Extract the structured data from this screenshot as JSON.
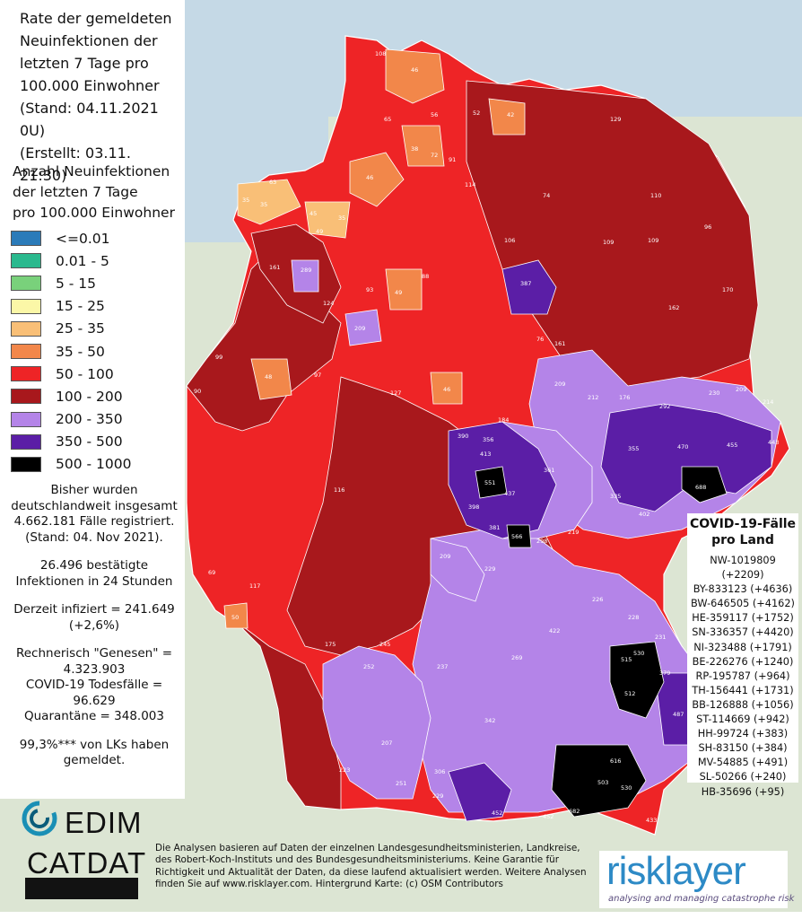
{
  "title_lines": [
    "Rate der gemeldeten",
    "Neuinfektionen der",
    "letzten 7 Tage pro",
    "100.000 Einwohner",
    "(Stand: 04.11.2021 0U)",
    "(Erstellt: 03.11. 21:30)"
  ],
  "legend_title_lines": [
    "Anzahl Neuinfektionen",
    "der letzten 7 Tage",
    "pro 100.000 Einwohner"
  ],
  "legend": [
    {
      "label": "<=0.01",
      "color": "#2b7bb9"
    },
    {
      "label": "0.01 - 5",
      "color": "#2ab98e"
    },
    {
      "label": "5 - 15",
      "color": "#79d17b"
    },
    {
      "label": "15 - 25",
      "color": "#fbf7a7"
    },
    {
      "label": "25 - 35",
      "color": "#f9bf77"
    },
    {
      "label": "35 - 50",
      "color": "#f2874a"
    },
    {
      "label": "50 - 100",
      "color": "#ee2426"
    },
    {
      "label": "100 - 200",
      "color": "#a8181c"
    },
    {
      "label": "200 - 350",
      "color": "#b484e8"
    },
    {
      "label": "350 - 500",
      "color": "#5b1ea6"
    },
    {
      "label": "500 - 1000",
      "color": "#000000"
    }
  ],
  "stats": {
    "total": "Bisher wurden deutschlandweit insgesamt 4.662.181 Fälle registriert. (Stand: 04. Nov 2021).",
    "new24h": "26.496 bestätigte Infektionen in 24 Stunden",
    "active": "Derzeit infiziert = 241.649 (+2,6%)",
    "recovered": "Rechnerisch \"Genesen\" = 4.323.903",
    "deaths": "COVID-19 Todesfälle = 96.629",
    "quarantine": "Quarantäne = 348.003",
    "reported": "99,3%*** von LKs haben gemeldet."
  },
  "laender_title": "COVID-19-Fälle pro Land",
  "laender": [
    "NW-1019809",
    "(+2209)",
    "BY-833123 (+4636)",
    "BW-646505 (+4162)",
    "HE-359117 (+1752)",
    "SN-336357 (+4420)",
    "NI-323488 (+1791)",
    "BE-226276 (+1240)",
    "RP-195787 (+964)",
    "TH-156441 (+1731)",
    "BB-126888 (+1056)",
    "ST-114669 (+942)",
    "HH-99724 (+383)",
    "SH-83150 (+384)",
    "MV-54885 (+491)",
    "SL-50266 (+240)",
    "HB-35696 (+95)"
  ],
  "disclaimer": "Die Analysen basieren auf Daten der einzelnen Landesgesundheitsministerien, Landkreise, des Robert-Koch-Instituts und des Bundesgesundheitsministeriums. Keine Garantie für Richtigkeit und Aktualität der Daten, da diese laufend aktualisiert werden. Weitere Analysen finden Sie auf www.risklayer.com. Hintergrund Karte: (c) OSM Contributors",
  "logos": {
    "edim": "EDIM",
    "catdat": "CATDAT",
    "risklayer_name": "risklayer",
    "risklayer_tagline": "analysing and managing catastrophe risk"
  },
  "map_labels": [
    "108",
    "46",
    "56",
    "52",
    "42",
    "65",
    "38",
    "72",
    "91",
    "114",
    "129",
    "110",
    "74",
    "35",
    "46",
    "63",
    "45",
    "35",
    "49",
    "35",
    "106",
    "109",
    "109",
    "96",
    "161",
    "289",
    "124",
    "387",
    "162",
    "170",
    "99",
    "209",
    "49",
    "93",
    "76",
    "161",
    "184",
    "88",
    "48",
    "46",
    "127",
    "209",
    "212",
    "176",
    "292",
    "230",
    "209",
    "214",
    "390",
    "356",
    "413",
    "361",
    "355",
    "470",
    "455",
    "443",
    "551",
    "437",
    "688",
    "398",
    "335",
    "402",
    "381",
    "566",
    "298",
    "219",
    "209",
    "229",
    "422",
    "226",
    "228",
    "231",
    "245",
    "252",
    "237",
    "269",
    "342",
    "515",
    "530",
    "379",
    "512",
    "369",
    "487",
    "207",
    "306",
    "223",
    "616",
    "503",
    "530",
    "682",
    "433",
    "452",
    "452",
    "251",
    "229",
    "50",
    "69",
    "117",
    "116",
    "175",
    "97",
    "90"
  ]
}
